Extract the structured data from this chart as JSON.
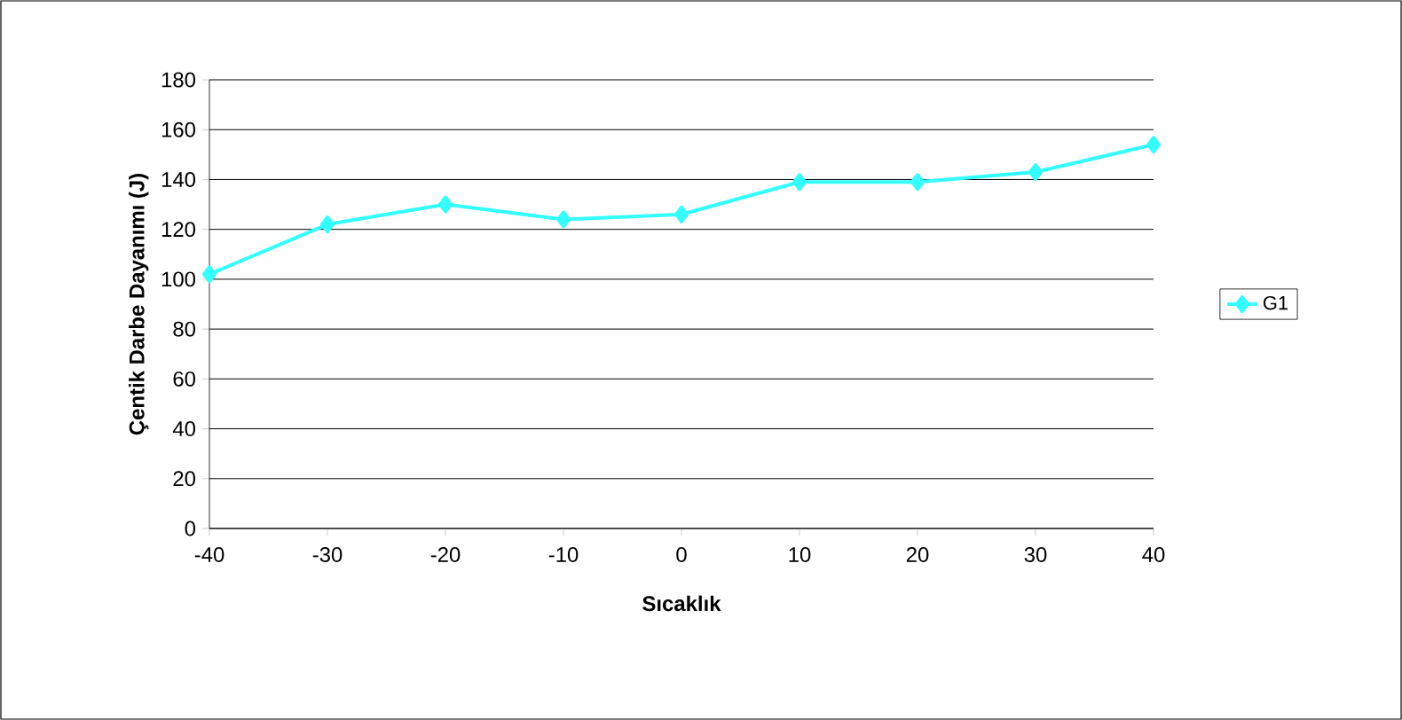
{
  "chart_data": {
    "type": "line",
    "xlabel": "Sıcaklık",
    "ylabel": "Çentik Darbe Dayanımı (J)",
    "x": [
      -40,
      -30,
      -20,
      -10,
      0,
      10,
      20,
      30,
      40
    ],
    "series": [
      {
        "name": "G1",
        "color": "#33FFFF",
        "values": [
          102,
          122,
          130,
          124,
          126,
          139,
          139,
          143,
          154
        ]
      }
    ],
    "xlim": [
      -40,
      40
    ],
    "xticks": [
      -40,
      -30,
      -20,
      -10,
      0,
      10,
      20,
      30,
      40
    ],
    "ylim": [
      0,
      180
    ],
    "yticks": [
      0,
      20,
      40,
      60,
      80,
      100,
      120,
      140,
      160,
      180
    ],
    "grid": "y",
    "legend": "right",
    "marker": "diamond",
    "line_style": "solid"
  }
}
